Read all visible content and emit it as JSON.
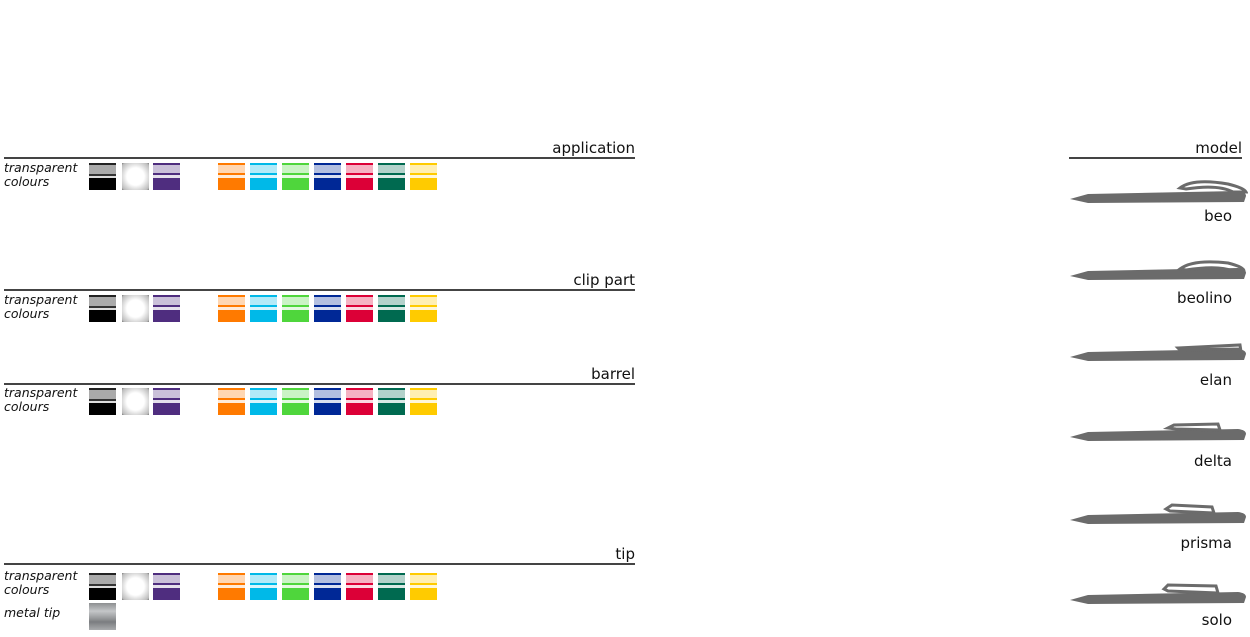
{
  "sections": [
    {
      "title": "application",
      "row_label": [
        "transparent",
        "colours"
      ]
    },
    {
      "title": "clip part",
      "row_label": [
        "transparent",
        "colours"
      ]
    },
    {
      "title": "barrel",
      "row_label": [
        "transparent",
        "colours"
      ]
    },
    {
      "title": "tip",
      "row_label": [
        "transparent",
        "colours"
      ],
      "extra_label": "metal tip"
    }
  ],
  "colours": [
    {
      "name": "black",
      "hex": "#000000"
    },
    {
      "name": "white",
      "hex": "#ffffff"
    },
    {
      "name": "purple",
      "hex": "#4f2d7f"
    },
    {
      "name": "orange",
      "hex": "#ff7a00"
    },
    {
      "name": "cyan",
      "hex": "#00b9e8"
    },
    {
      "name": "green",
      "hex": "#4fd63c"
    },
    {
      "name": "navy",
      "hex": "#002896"
    },
    {
      "name": "red",
      "hex": "#dc0037"
    },
    {
      "name": "teal",
      "hex": "#006a50"
    },
    {
      "name": "yellow",
      "hex": "#ffcb00"
    }
  ],
  "model": {
    "title": "model",
    "items": [
      "beo",
      "beolino",
      "elan",
      "delta",
      "prisma",
      "solo"
    ]
  }
}
